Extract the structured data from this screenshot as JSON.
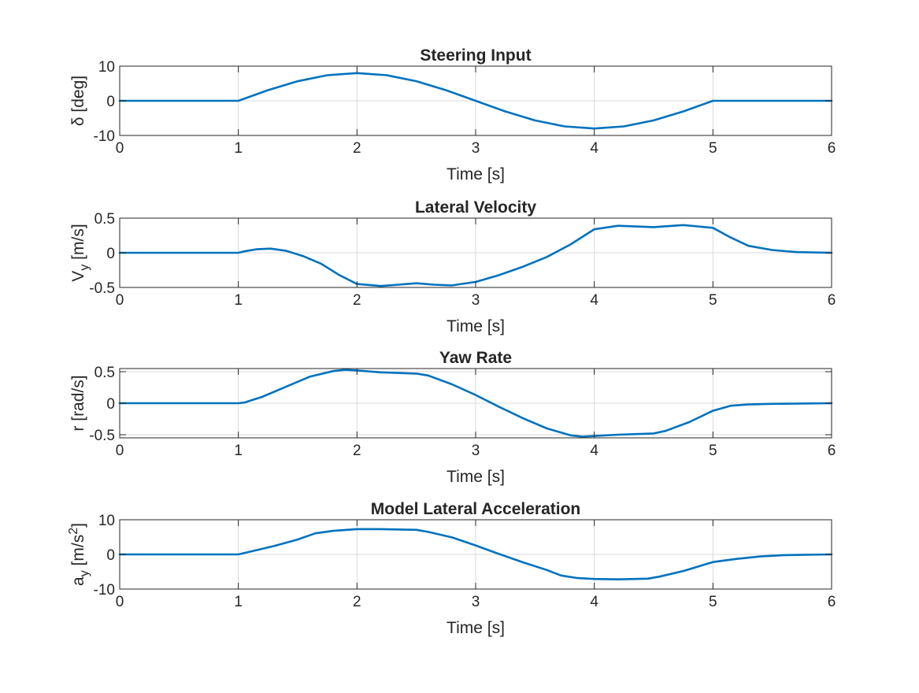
{
  "chart_data": [
    {
      "type": "line",
      "title": "Steering Input",
      "xlabel": "Time [s]",
      "ylabel": "δ [deg]",
      "xlim": [
        0,
        6
      ],
      "ylim": [
        -10,
        10
      ],
      "xticks": [
        0,
        1,
        2,
        3,
        4,
        5,
        6
      ],
      "yticks": [
        -10,
        0,
        10
      ],
      "grid": true,
      "series_color": "#0072bd",
      "x": [
        0,
        1,
        1.25,
        1.5,
        1.75,
        2,
        2.25,
        2.5,
        2.75,
        3,
        3.25,
        3.5,
        3.75,
        4,
        4.25,
        4.5,
        4.75,
        5,
        6
      ],
      "y": [
        0,
        0,
        3.06,
        5.66,
        7.39,
        8,
        7.39,
        5.66,
        3.06,
        0,
        -3.06,
        -5.66,
        -7.39,
        -8,
        -7.39,
        -5.66,
        -3.06,
        0,
        0
      ]
    },
    {
      "type": "line",
      "title": "Lateral Velocity",
      "xlabel": "Time [s]",
      "ylabel": "V",
      "ylabel_sub": "y",
      "ylabel_unit": " [m/s]",
      "xlim": [
        0,
        6
      ],
      "ylim": [
        -0.5,
        0.5
      ],
      "xticks": [
        0,
        1,
        2,
        3,
        4,
        5,
        6
      ],
      "yticks": [
        -0.5,
        0,
        0.5
      ],
      "grid": true,
      "series_color": "#0072bd",
      "x": [
        0,
        1,
        1.05,
        1.15,
        1.27,
        1.4,
        1.55,
        1.7,
        1.85,
        2,
        2.2,
        2.35,
        2.5,
        2.65,
        2.8,
        3,
        3.2,
        3.4,
        3.6,
        3.8,
        4,
        4.2,
        4.5,
        4.75,
        5,
        5.15,
        5.3,
        5.5,
        5.7,
        6
      ],
      "y": [
        0,
        0,
        0.02,
        0.05,
        0.06,
        0.03,
        -0.05,
        -0.16,
        -0.32,
        -0.45,
        -0.48,
        -0.46,
        -0.44,
        -0.46,
        -0.47,
        -0.42,
        -0.32,
        -0.2,
        -0.06,
        0.12,
        0.34,
        0.39,
        0.37,
        0.4,
        0.36,
        0.22,
        0.1,
        0.04,
        0.01,
        0
      ]
    },
    {
      "type": "line",
      "title": "Yaw Rate",
      "xlabel": "Time [s]",
      "ylabel": "r [rad/s]",
      "xlim": [
        0,
        6
      ],
      "ylim": [
        -0.55,
        0.55
      ],
      "xticks": [
        0,
        1,
        2,
        3,
        4,
        5,
        6
      ],
      "yticks": [
        -0.5,
        0,
        0.5
      ],
      "grid": true,
      "series_color": "#0072bd",
      "x": [
        0,
        1,
        1.05,
        1.2,
        1.4,
        1.6,
        1.8,
        1.9,
        2,
        2.2,
        2.5,
        2.6,
        2.8,
        3,
        3.2,
        3.4,
        3.6,
        3.8,
        3.9,
        4,
        4.2,
        4.5,
        4.6,
        4.8,
        5,
        5.15,
        5.3,
        5.5,
        6
      ],
      "y": [
        0,
        0,
        0.01,
        0.1,
        0.26,
        0.42,
        0.51,
        0.53,
        0.52,
        0.49,
        0.47,
        0.44,
        0.3,
        0.13,
        -0.06,
        -0.24,
        -0.4,
        -0.51,
        -0.53,
        -0.52,
        -0.5,
        -0.48,
        -0.44,
        -0.3,
        -0.12,
        -0.04,
        -0.02,
        -0.01,
        0
      ]
    },
    {
      "type": "line",
      "title": "Model Lateral Acceleration",
      "xlabel": "Time [s]",
      "ylabel": "a",
      "ylabel_sub": "y",
      "ylabel_unit": " [m/s",
      "ylabel_sup": "2",
      "ylabel_end": "]",
      "xlim": [
        0,
        6
      ],
      "ylim": [
        -10,
        10
      ],
      "xticks": [
        0,
        1,
        2,
        3,
        4,
        5,
        6
      ],
      "yticks": [
        -10,
        0,
        10
      ],
      "grid": true,
      "series_color": "#0072bd",
      "x": [
        0,
        1,
        1.1,
        1.3,
        1.5,
        1.65,
        1.8,
        2,
        2.2,
        2.5,
        2.6,
        2.8,
        3,
        3.2,
        3.4,
        3.6,
        3.72,
        3.85,
        4,
        4.2,
        4.45,
        4.55,
        4.75,
        5,
        5.2,
        5.4,
        5.6,
        6
      ],
      "y": [
        0,
        0,
        0.8,
        2.4,
        4.3,
        6.1,
        6.8,
        7.3,
        7.3,
        7.1,
        6.5,
        4.9,
        2.6,
        0.1,
        -2.3,
        -4.5,
        -6.1,
        -6.8,
        -7.1,
        -7.2,
        -7.0,
        -6.4,
        -4.8,
        -2.2,
        -1.3,
        -0.6,
        -0.2,
        0
      ]
    }
  ]
}
